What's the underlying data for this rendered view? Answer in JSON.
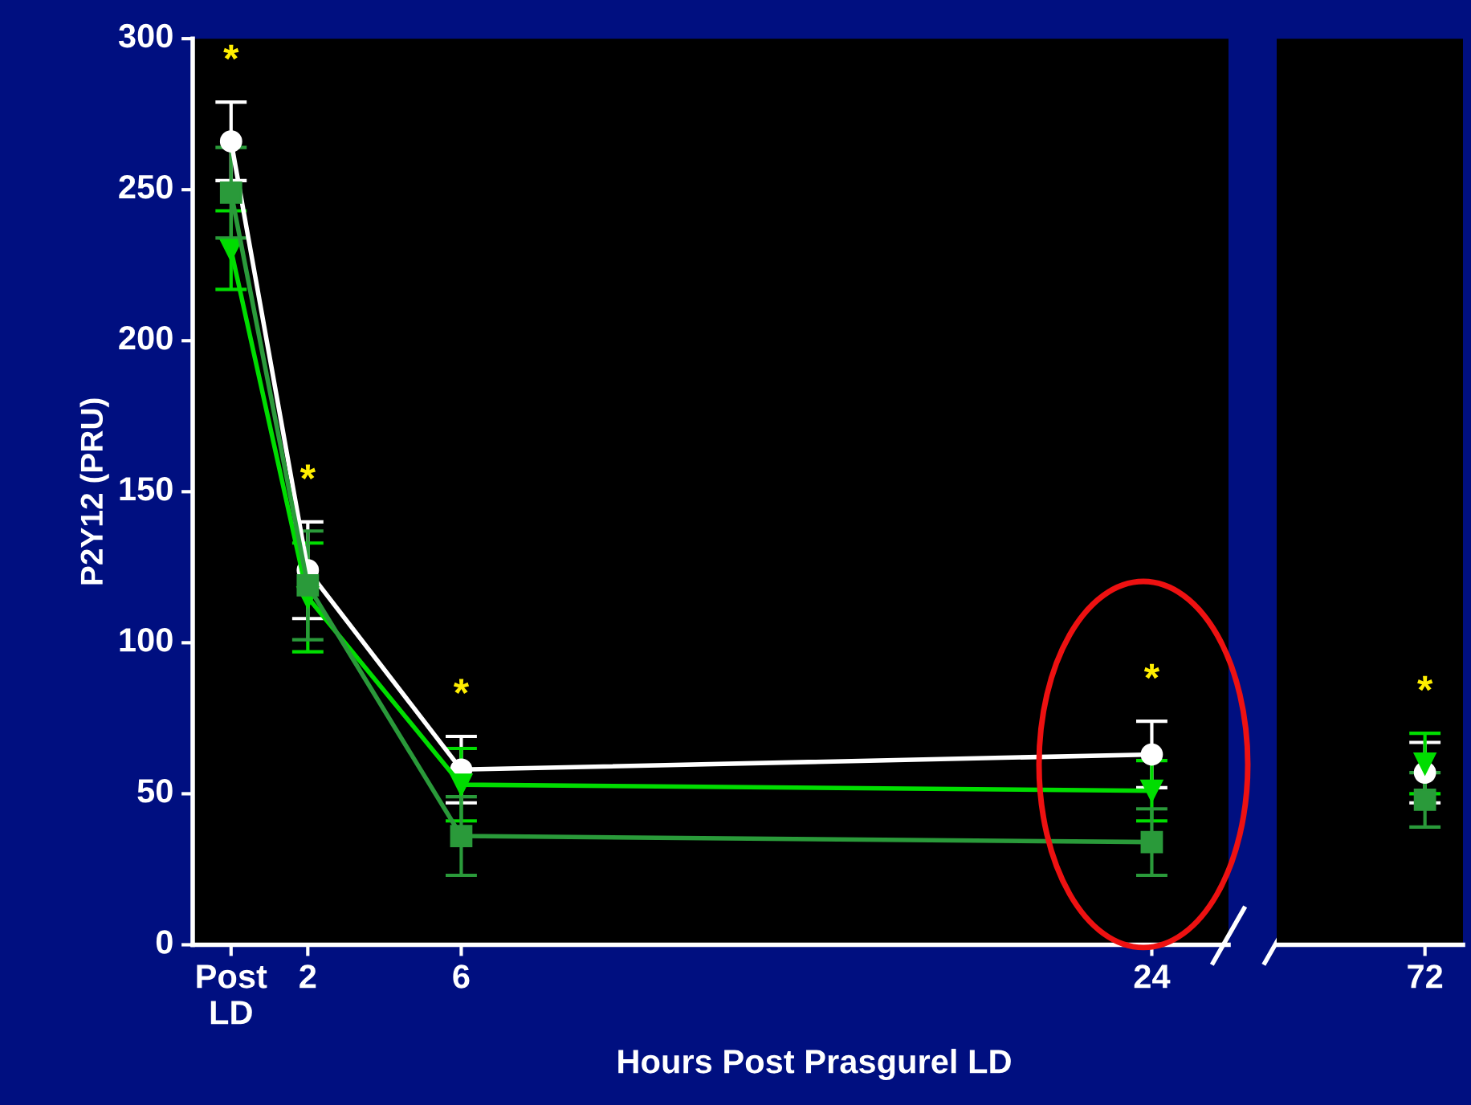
{
  "chart_data": [
    {
      "type": "line",
      "xlabel": "Hours Post Prasgurel LD",
      "ylabel": "P2Y12 (PRU)",
      "x": [
        0,
        2,
        6,
        24
      ],
      "xlim": [
        -1,
        26
      ],
      "xticks": [
        {
          "value": 0,
          "label": "Post\nLD"
        },
        2,
        6,
        24
      ],
      "ylim": [
        0,
        300
      ],
      "yticks": [
        0,
        50,
        100,
        150,
        200,
        250,
        300
      ],
      "line_style": "solid",
      "series": [
        {
          "color": "#ffffff",
          "marker": "circle",
          "values": [
            266,
            124,
            58,
            63
          ],
          "errors": [
            13,
            16,
            11,
            11
          ]
        },
        {
          "color": "#00dd00",
          "marker": "triangle",
          "values": [
            230,
            115,
            53,
            51
          ],
          "errors": [
            13,
            18,
            12,
            10
          ]
        },
        {
          "color": "#2a9a3a",
          "marker": "square",
          "values": [
            249,
            119,
            36,
            34
          ],
          "errors": [
            15,
            18,
            13,
            11
          ]
        }
      ],
      "annotations": [
        "*",
        "*",
        "*",
        "*"
      ]
    },
    {
      "type": "line",
      "categories": [
        "72"
      ],
      "ylim": [
        0,
        300
      ],
      "tick_labels": "x",
      "line_style": "solid",
      "series": [
        {
          "color": "#ffffff",
          "marker": "circle",
          "values": [
            57
          ],
          "errors": [
            10
          ]
        },
        {
          "color": "#00dd00",
          "marker": "triangle",
          "values": [
            60
          ],
          "errors": [
            10
          ]
        },
        {
          "color": "#2a9a3a",
          "marker": "square",
          "values": [
            48
          ],
          "errors": [
            9
          ]
        }
      ],
      "annotations": [
        "*"
      ]
    }
  ]
}
